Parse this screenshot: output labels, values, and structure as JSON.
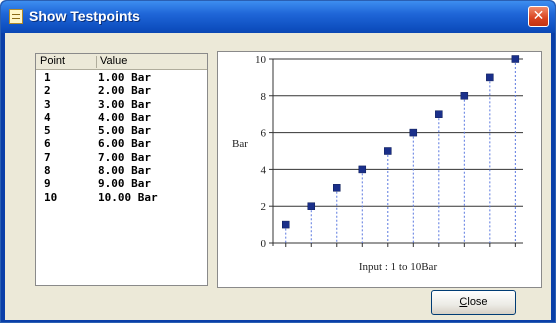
{
  "window": {
    "title": "Show Testpoints",
    "close_glyph": "✕",
    "title_icon": "notepad-icon"
  },
  "list": {
    "headers": {
      "point": "Point",
      "value": "Value"
    },
    "rows": [
      {
        "point": "1",
        "value": "1.00 Bar"
      },
      {
        "point": "2",
        "value": "2.00 Bar"
      },
      {
        "point": "3",
        "value": "3.00 Bar"
      },
      {
        "point": "4",
        "value": "4.00 Bar"
      },
      {
        "point": "5",
        "value": "5.00 Bar"
      },
      {
        "point": "6",
        "value": "6.00 Bar"
      },
      {
        "point": "7",
        "value": "7.00 Bar"
      },
      {
        "point": "8",
        "value": "8.00 Bar"
      },
      {
        "point": "9",
        "value": "9.00 Bar"
      },
      {
        "point": "10",
        "value": "10.00 Bar"
      }
    ]
  },
  "chart_data": {
    "type": "scatter",
    "x": [
      1,
      2,
      3,
      4,
      5,
      6,
      7,
      8,
      9,
      10
    ],
    "values": [
      1,
      2,
      3,
      4,
      5,
      6,
      7,
      8,
      9,
      10
    ],
    "ylabel": "Bar",
    "xlabel": "Input : 1 to 10Bar",
    "ylim": [
      0,
      10
    ],
    "yticks": [
      "0",
      "2",
      "4",
      "6",
      "8",
      "10"
    ],
    "grid": true,
    "marker_color": "#1a2f8a",
    "drop_line_color": "#5a78e0"
  },
  "buttons": {
    "close_label_u": "C",
    "close_label_rest": "lose"
  }
}
